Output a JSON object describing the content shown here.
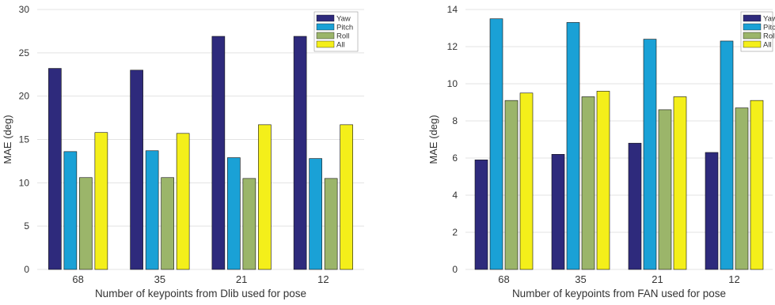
{
  "chart_data": [
    {
      "type": "bar",
      "categories": [
        "68",
        "35",
        "21",
        "12"
      ],
      "series": [
        {
          "name": "Yaw",
          "color": "#2e2a7c",
          "values": [
            23.2,
            23.0,
            26.9,
            26.9
          ]
        },
        {
          "name": "Pitch",
          "color": "#1aa1d6",
          "values": [
            13.6,
            13.7,
            12.9,
            12.8
          ]
        },
        {
          "name": "Roll",
          "color": "#9bb56a",
          "values": [
            10.6,
            10.6,
            10.5,
            10.5
          ]
        },
        {
          "name": "All",
          "color": "#f4ef1a",
          "values": [
            15.8,
            15.7,
            16.7,
            16.7
          ]
        }
      ],
      "xlabel": "Number of keypoints from Dlib used for pose",
      "ylabel": "MAE (deg)",
      "ylim": [
        0,
        30
      ],
      "yticks": [
        0,
        5,
        10,
        15,
        20,
        25,
        30
      ],
      "grid": true,
      "legend": "top-right"
    },
    {
      "type": "bar",
      "categories": [
        "68",
        "35",
        "21",
        "12"
      ],
      "series": [
        {
          "name": "Yaw",
          "color": "#2e2a7c",
          "values": [
            5.9,
            6.2,
            6.8,
            6.3
          ]
        },
        {
          "name": "Pitch",
          "color": "#1aa1d6",
          "values": [
            13.5,
            13.3,
            12.4,
            12.3
          ]
        },
        {
          "name": "Roll",
          "color": "#9bb56a",
          "values": [
            9.1,
            9.3,
            8.6,
            8.7
          ]
        },
        {
          "name": "All",
          "color": "#f4ef1a",
          "values": [
            9.5,
            9.6,
            9.3,
            9.1
          ]
        }
      ],
      "xlabel": "Number of keypoints from FAN used for pose",
      "ylabel": "MAE (deg)",
      "ylim": [
        0,
        14
      ],
      "yticks": [
        0,
        2,
        4,
        6,
        8,
        10,
        12,
        14
      ],
      "grid": true,
      "legend": "top-right"
    }
  ]
}
